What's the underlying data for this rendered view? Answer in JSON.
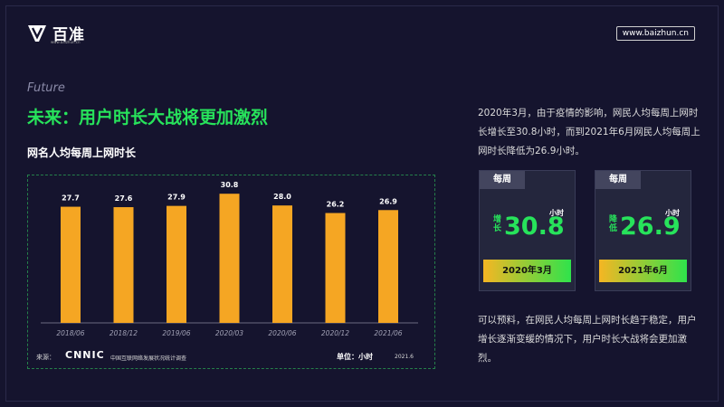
{
  "brand": {
    "name": "百准",
    "sub": "www.baizhun.cn",
    "url": "www.baizhun.cn"
  },
  "heading": {
    "future": "Future",
    "title": "未来：用户时长大战将更加激烈"
  },
  "chart_data": {
    "type": "bar",
    "title": "网名人均每周上网时长",
    "categories": [
      "2018/06",
      "2018/12",
      "2019/06",
      "2020/03",
      "2020/06",
      "2020/12",
      "2021/06"
    ],
    "values": [
      27.7,
      27.6,
      27.9,
      30.8,
      28.0,
      26.2,
      26.9
    ],
    "value_labels": [
      "27.7",
      "27.6",
      "27.9",
      "30.8",
      "28.0",
      "26.2",
      "26.9"
    ],
    "ylim": [
      0,
      33
    ],
    "bar_color": "#f5a623",
    "grid": false
  },
  "source": {
    "label": "来源：",
    "org": "CNNIC",
    "name": "中国互联网络发展状况统计调查",
    "unit": "单位：小时",
    "date": "2021.6"
  },
  "right": {
    "para1": "2020年3月，由于疫情的影响，网民人均每周上网时长增长至30.8小时，而到2021年6月网民人均每周上网时长降低为26.9小时。",
    "para2": "可以预料，在网民人均每周上网时长趋于稳定，用户增长逐渐变缓的情况下，用户时长大战将会更加激烈。",
    "cards": [
      {
        "tab": "每周",
        "unit": "小时",
        "side": "增长",
        "value": "30.8",
        "date": "2020年3月"
      },
      {
        "tab": "每周",
        "unit": "小时",
        "side": "降低",
        "value": "26.9",
        "date": "2021年6月"
      }
    ]
  },
  "colors": {
    "background": "#15142e",
    "accent_green": "#27e35b",
    "bar": "#f5a623"
  }
}
